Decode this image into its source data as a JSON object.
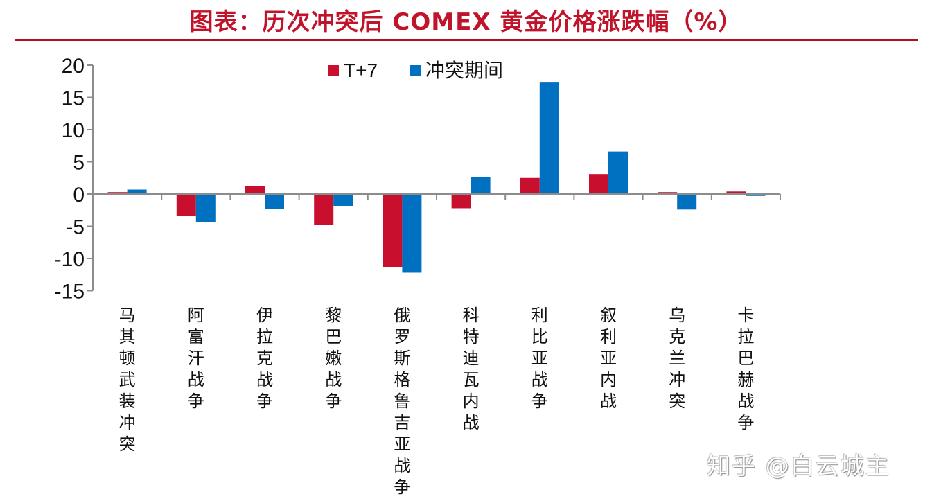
{
  "header": {
    "title": "图表：历次冲突后 COMEX 黄金价格涨跌幅（%）"
  },
  "watermark": "知乎 @白云城主",
  "colors": {
    "series_t7": "#c8102e",
    "series_conflict": "#0070c0",
    "title": "#c0142b",
    "axis": "#8c8c8c"
  },
  "chart_data": {
    "type": "bar",
    "title": "图表：历次冲突后 COMEX 黄金价格涨跌幅（%）",
    "xlabel": "",
    "ylabel": "",
    "ylim": [
      -15,
      20
    ],
    "yticks": [
      20,
      15,
      10,
      5,
      0,
      -5,
      -10,
      -15
    ],
    "grid": false,
    "legend_position": "top-center",
    "categories": [
      "马其顿武装冲突",
      "阿富汗战争",
      "伊拉克战争",
      "黎巴嫩战争",
      "俄罗斯格鲁吉亚战争",
      "科特迪瓦内战",
      "利比亚战争",
      "叙利亚内战",
      "乌克兰冲突",
      "卡拉巴赫战争"
    ],
    "series": [
      {
        "name": "T+7",
        "color": "#c8102e",
        "values": [
          0.3,
          -3.4,
          1.2,
          -4.8,
          -11.3,
          -2.2,
          2.5,
          3.1,
          0.3,
          0.4
        ]
      },
      {
        "name": "冲突期间",
        "color": "#0070c0",
        "values": [
          0.7,
          -4.3,
          -2.3,
          -1.9,
          -12.2,
          2.6,
          17.3,
          6.6,
          -2.4,
          -0.3
        ]
      }
    ]
  }
}
